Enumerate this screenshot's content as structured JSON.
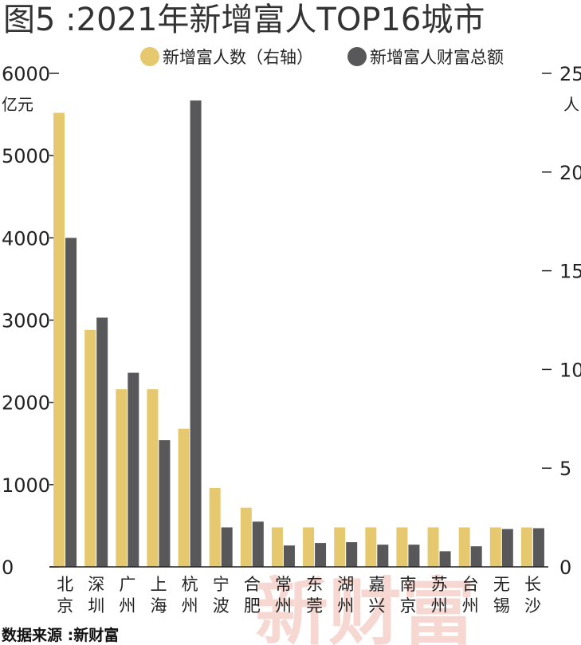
{
  "title": "图5 :2021年新增富人TOP16城市",
  "source": "数据来源 :新财富",
  "watermark": "新财富",
  "colors": {
    "count": "#e6c96f",
    "wealth": "#58585a",
    "axis": "#222222",
    "watermark": "#f0b7ad"
  },
  "chart_data": {
    "type": "bar",
    "categories": [
      "北京",
      "深圳",
      "广州",
      "上海",
      "杭州",
      "宁波",
      "合肥",
      "常州",
      "东莞",
      "湖州",
      "嘉兴",
      "南京",
      "苏州",
      "台州",
      "无锡",
      "长沙"
    ],
    "series": [
      {
        "name": "新增富人数（右轴）",
        "axis": "right",
        "color": "#e6c96f",
        "values": [
          23,
          12,
          9,
          9,
          7,
          4,
          3,
          2,
          2,
          2,
          2,
          2,
          2,
          2,
          2,
          2
        ]
      },
      {
        "name": "新增富人财富总额",
        "axis": "left",
        "color": "#58585a",
        "values": [
          4000,
          3030,
          2360,
          1540,
          5670,
          480,
          550,
          260,
          290,
          300,
          270,
          270,
          190,
          250,
          460,
          470
        ]
      }
    ],
    "left_axis": {
      "unit": "亿元",
      "ylim": [
        0,
        6000
      ],
      "ticks": [
        0,
        1000,
        2000,
        3000,
        4000,
        5000,
        6000
      ]
    },
    "right_axis": {
      "unit": "人",
      "ylim": [
        0,
        25
      ],
      "ticks": [
        5,
        10,
        15,
        20,
        25
      ],
      "zero_label": "0"
    },
    "legend": "top-right",
    "grid": false
  }
}
